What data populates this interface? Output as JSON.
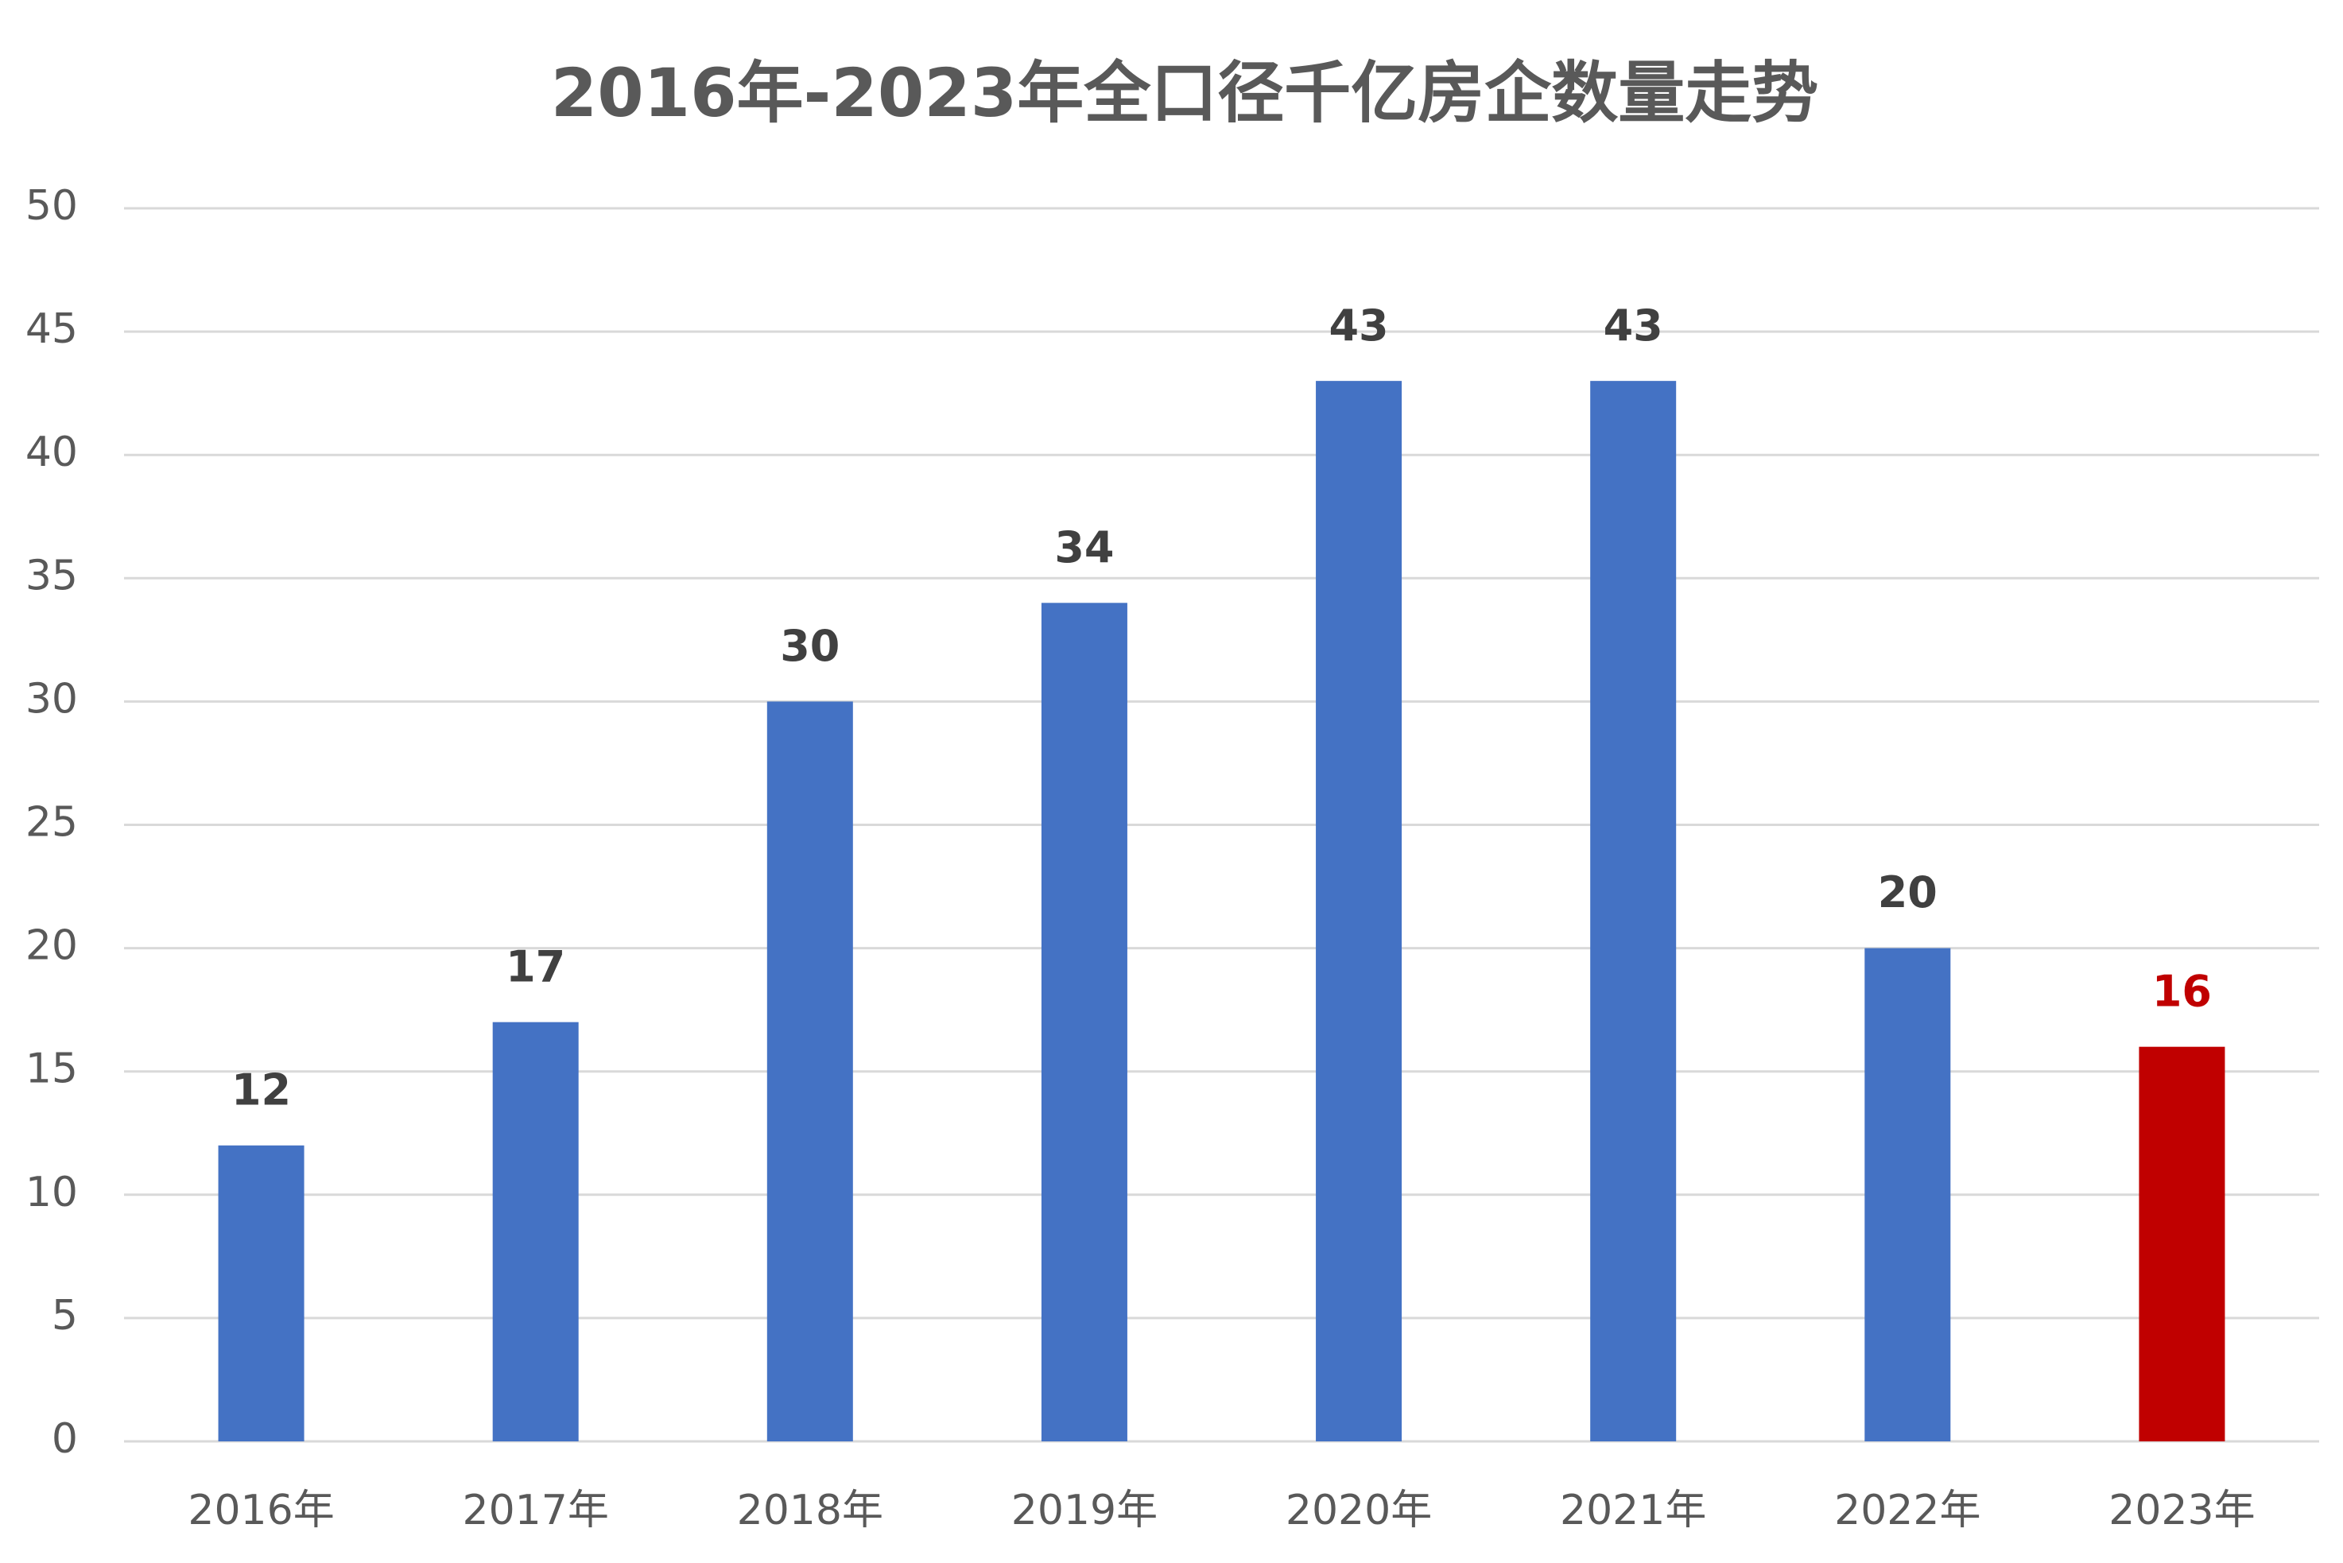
{
  "chart_data": {
    "type": "bar",
    "title": "2016年-2023年全口径千亿房企数量走势",
    "categories": [
      "2016年",
      "2017年",
      "2018年",
      "2019年",
      "2020年",
      "2021年",
      "2022年",
      "2023年"
    ],
    "values": [
      12,
      17,
      30,
      34,
      43,
      43,
      20,
      16
    ],
    "colors": [
      "#4472c4",
      "#4472c4",
      "#4472c4",
      "#4472c4",
      "#4472c4",
      "#4472c4",
      "#4472c4",
      "#c00000"
    ],
    "label_colors": [
      "#404040",
      "#404040",
      "#404040",
      "#404040",
      "#404040",
      "#404040",
      "#404040",
      "#c00000"
    ],
    "ylim": [
      0,
      50
    ],
    "yticks": [
      0,
      5,
      10,
      15,
      20,
      25,
      30,
      35,
      40,
      45,
      50
    ],
    "grid": true
  }
}
